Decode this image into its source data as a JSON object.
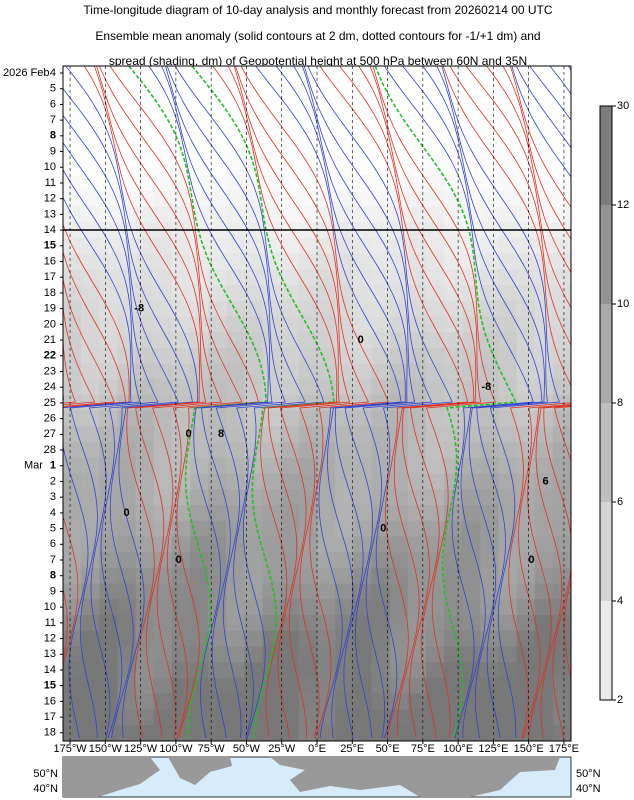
{
  "chart_data": {
    "type": "hovmoller",
    "title": [
      "Time-longitude diagram of 10-day analysis and monthly forecast from 20260214 00 UTC",
      "Ensemble mean anomaly (solid contours at 2 dm, dotted contours for -1/+1 dm) and",
      "spread (shading, dm) of Geopotential height at 500 hPa between 60N and 35N"
    ],
    "months": [
      "2026 Feb",
      "Mar"
    ],
    "days": [
      4,
      5,
      6,
      7,
      8,
      9,
      10,
      11,
      12,
      13,
      14,
      15,
      16,
      17,
      18,
      19,
      20,
      21,
      22,
      23,
      24,
      25,
      26,
      27,
      28,
      1,
      2,
      3,
      4,
      5,
      6,
      7,
      8,
      9,
      10,
      11,
      12,
      13,
      14,
      15,
      16,
      17,
      18
    ],
    "sunday_color": "#e00000",
    "xlim": [
      -180,
      180
    ],
    "xticks": [
      {
        "value": -175,
        "label": "175°W"
      },
      {
        "value": -150,
        "label": "150°W"
      },
      {
        "value": -125,
        "label": "125°W"
      },
      {
        "value": -100,
        "label": "100°W"
      },
      {
        "value": -75,
        "label": "75°W"
      },
      {
        "value": -50,
        "label": "50°W"
      },
      {
        "value": -25,
        "label": "25°W"
      },
      {
        "value": 0,
        "label": "0°E"
      },
      {
        "value": 25,
        "label": "25°E"
      },
      {
        "value": 50,
        "label": "50°E"
      },
      {
        "value": 75,
        "label": "75°E"
      },
      {
        "value": 100,
        "label": "100°E"
      },
      {
        "value": 125,
        "label": "125°E"
      },
      {
        "value": 150,
        "label": "150°E"
      },
      {
        "value": 175,
        "label": "175°E"
      }
    ],
    "grid": true,
    "colorbar_ticks": [
      2,
      4,
      6,
      8,
      10,
      12,
      30
    ],
    "contour_labels": [
      {
        "value": 0,
        "lon": -135,
        "month": "Mar",
        "day": 4
      },
      {
        "value": 0,
        "lon": -98,
        "month": "Mar",
        "day": 7
      },
      {
        "value": 0,
        "lon": 47,
        "month": "Mar",
        "day": 5
      },
      {
        "value": 0,
        "lon": 152,
        "month": "Mar",
        "day": 7
      },
      {
        "value": 0,
        "lon": -91,
        "month": "Feb",
        "day": 27
      },
      {
        "value": 0,
        "lon": 31,
        "month": "Feb",
        "day": 21
      },
      {
        "value": -8,
        "lon": -126,
        "month": "Feb",
        "day": 19
      },
      {
        "value": 8,
        "lon": -68,
        "month": "Feb",
        "day": 27
      },
      {
        "value": -8,
        "lon": 120,
        "month": "Feb",
        "day": 24
      },
      {
        "value": 6,
        "lon": 162,
        "month": "Mar",
        "day": 2
      }
    ],
    "map_labels": [
      "50°N",
      "40°N"
    ]
  }
}
